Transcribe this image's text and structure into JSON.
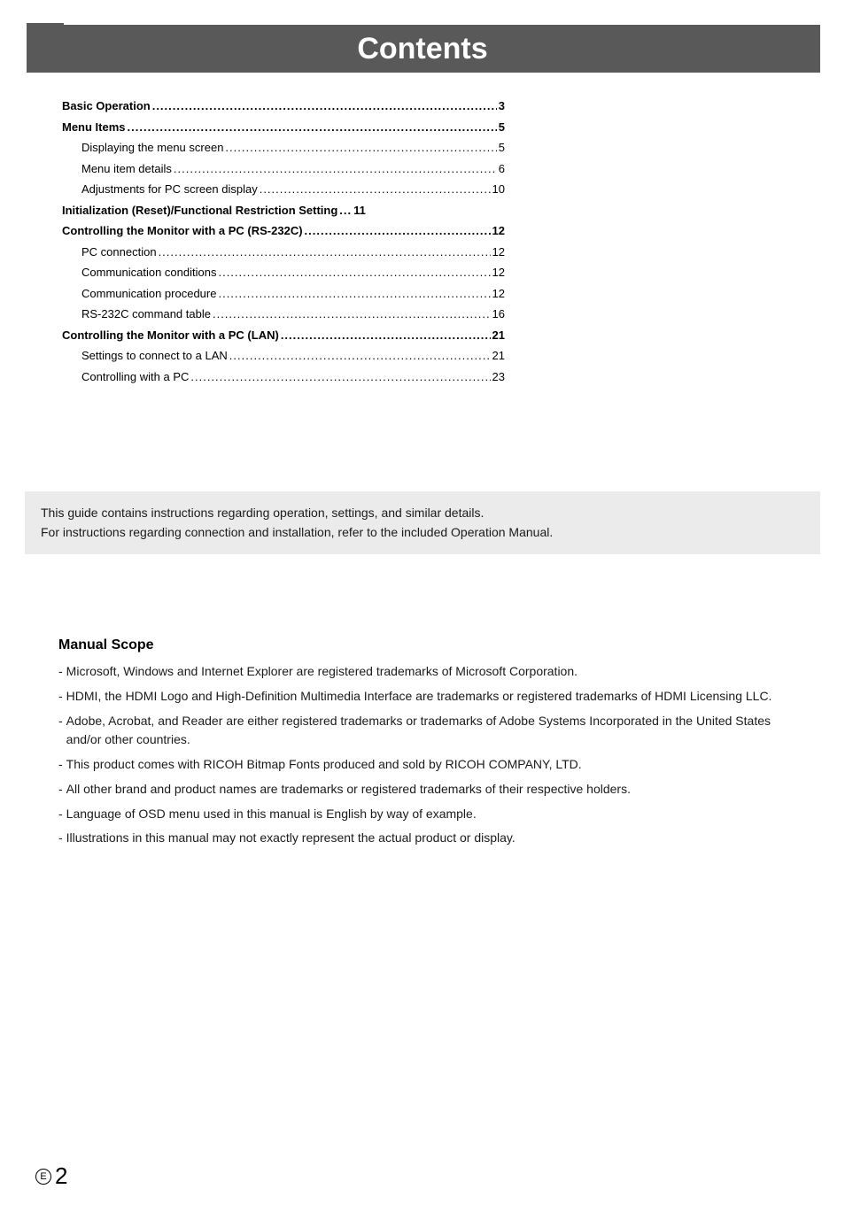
{
  "header": {
    "title": "Contents"
  },
  "toc": [
    {
      "title": "Basic Operation",
      "page": "3",
      "bold": true,
      "sub": false
    },
    {
      "title": "Menu Items",
      "page": "5",
      "bold": true,
      "sub": false
    },
    {
      "title": "Displaying the menu screen",
      "page": "5",
      "bold": false,
      "sub": true
    },
    {
      "title": "Menu item details",
      "page": "6",
      "bold": false,
      "sub": true
    },
    {
      "title": "Adjustments for PC screen display",
      "page": "10",
      "bold": false,
      "sub": true
    },
    {
      "title": "Initialization (Reset)/Functional Restriction Setting",
      "page": "11",
      "bold": true,
      "sub": false,
      "tight": true
    },
    {
      "title": "Controlling the Monitor with a PC (RS-232C)",
      "page": "12",
      "bold": true,
      "sub": false
    },
    {
      "title": "PC connection",
      "page": "12",
      "bold": false,
      "sub": true
    },
    {
      "title": "Communication conditions",
      "page": "12",
      "bold": false,
      "sub": true
    },
    {
      "title": "Communication procedure",
      "page": "12",
      "bold": false,
      "sub": true
    },
    {
      "title": "RS-232C command table",
      "page": "16",
      "bold": false,
      "sub": true
    },
    {
      "title": "Controlling the Monitor with a PC (LAN)",
      "page": "21",
      "bold": true,
      "sub": false
    },
    {
      "title": "Settings to connect to a LAN",
      "page": "21",
      "bold": false,
      "sub": true
    },
    {
      "title": "Controlling with a PC",
      "page": "23",
      "bold": false,
      "sub": true
    }
  ],
  "note": {
    "line1": "This guide contains instructions regarding operation, settings, and similar details.",
    "line2": "For instructions regarding connection and installation, refer to the included Operation Manual."
  },
  "scope": {
    "heading": "Manual Scope",
    "items": [
      "Microsoft, Windows and Internet Explorer are registered trademarks of Microsoft Corporation.",
      "HDMI, the HDMI Logo and High-Definition Multimedia Interface are trademarks or registered trademarks of HDMI Licensing LLC.",
      "Adobe, Acrobat, and Reader are either registered trademarks or trademarks of Adobe Systems Incorporated in the United States and/or other countries.",
      "This product comes with RICOH Bitmap Fonts produced and sold by RICOH COMPANY, LTD.",
      "All other brand and product names are trademarks or registered trademarks of their respective holders.",
      "Language of OSD menu used in this manual is English by way of example.",
      "Illustrations in this manual may not exactly represent the actual product or display."
    ]
  },
  "footer": {
    "marker": "E",
    "page": "2"
  },
  "style": {
    "dots": "................................................................................................................"
  }
}
